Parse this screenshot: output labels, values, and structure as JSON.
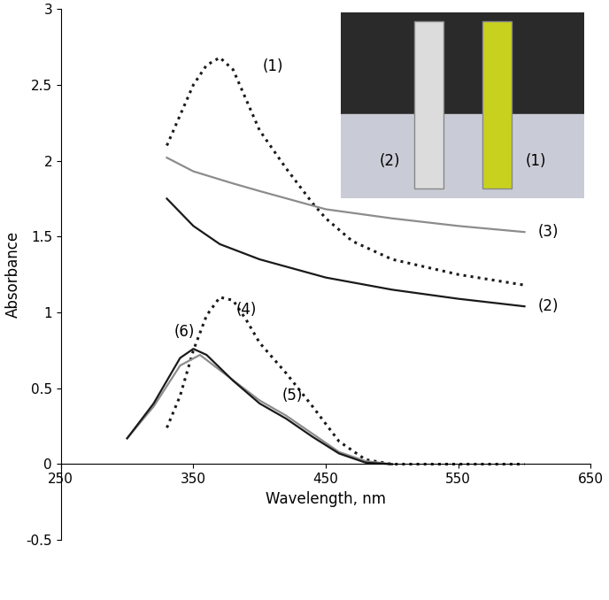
{
  "chart_data": {
    "type": "line",
    "x_label": "Wavelength, nm",
    "y_label": "Absorbance",
    "xlim": [
      250,
      650
    ],
    "xticks": [
      250,
      350,
      450,
      550,
      650
    ],
    "ylim": [
      -0.5,
      3
    ],
    "yticks": [
      -0.5,
      0,
      0.5,
      1,
      1.5,
      2,
      2.5,
      3
    ],
    "grid": false,
    "series": [
      {
        "name": "(1)",
        "color": "#1a1a1a",
        "line_style": "dotted",
        "x": [
          330,
          340,
          350,
          360,
          370,
          380,
          390,
          400,
          420,
          440,
          450,
          470,
          500,
          550,
          600
        ],
        "values": [
          2.1,
          2.3,
          2.5,
          2.63,
          2.68,
          2.6,
          2.4,
          2.2,
          1.95,
          1.72,
          1.62,
          1.47,
          1.35,
          1.25,
          1.18
        ]
      },
      {
        "name": "(2)",
        "color": "#1a1a1a",
        "line_style": "solid",
        "x": [
          330,
          350,
          370,
          400,
          450,
          500,
          550,
          600
        ],
        "values": [
          1.75,
          1.57,
          1.45,
          1.35,
          1.23,
          1.15,
          1.09,
          1.04
        ]
      },
      {
        "name": "(3)",
        "color": "#8c8c8c",
        "line_style": "solid",
        "x": [
          330,
          350,
          380,
          400,
          450,
          500,
          550,
          600
        ],
        "values": [
          2.02,
          1.93,
          1.85,
          1.8,
          1.68,
          1.62,
          1.57,
          1.53
        ]
      },
      {
        "name": "(4)",
        "color": "#1a1a1a",
        "line_style": "dotted",
        "x": [
          330,
          340,
          350,
          360,
          370,
          380,
          390,
          400,
          420,
          440,
          460,
          480,
          500,
          600
        ],
        "values": [
          0.24,
          0.45,
          0.75,
          0.98,
          1.1,
          1.08,
          0.95,
          0.8,
          0.6,
          0.38,
          0.15,
          0.03,
          0.0,
          0.0
        ]
      },
      {
        "name": "(5)",
        "color": "#8c8c8c",
        "line_style": "solid",
        "x": [
          300,
          320,
          340,
          355,
          370,
          400,
          420,
          440,
          460,
          480,
          500
        ],
        "values": [
          0.17,
          0.38,
          0.65,
          0.72,
          0.62,
          0.42,
          0.32,
          0.2,
          0.08,
          0.02,
          0.0
        ]
      },
      {
        "name": "(6)",
        "color": "#1a1a1a",
        "line_style": "solid",
        "x": [
          300,
          320,
          340,
          350,
          360,
          380,
          400,
          420,
          440,
          460,
          480,
          500
        ],
        "values": [
          0.17,
          0.4,
          0.7,
          0.76,
          0.72,
          0.55,
          0.4,
          0.3,
          0.18,
          0.07,
          0.01,
          0.0
        ]
      }
    ]
  },
  "inset": {
    "labels": [
      "(2)",
      "(1)"
    ],
    "colors": [
      "#dcdcdc",
      "#c8d21e"
    ]
  }
}
